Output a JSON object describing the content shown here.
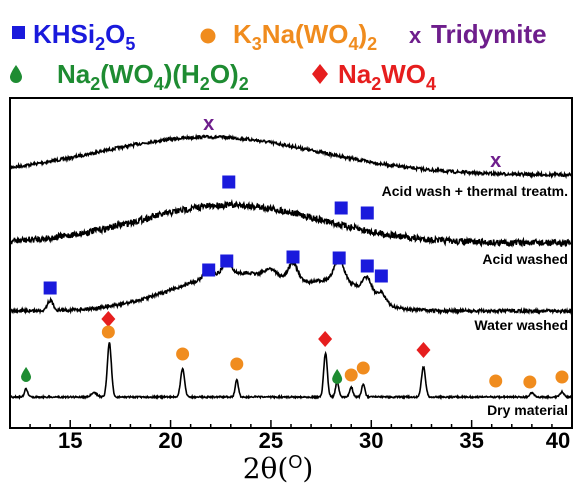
{
  "chart_data": {
    "type": "line",
    "title": "",
    "xlabel": "2θ(°)",
    "ylabel": "",
    "xlim": [
      12,
      40
    ],
    "xticks": [
      15,
      20,
      25,
      30,
      35,
      40
    ],
    "grid": false,
    "legend_position": "top",
    "legend": [
      {
        "key": "khsi2o5",
        "label": "KHSi2O5",
        "marker": "square",
        "color": "#1a1adc"
      },
      {
        "key": "k3na",
        "label": "K3Na(WO4)2",
        "marker": "circle",
        "color": "#f08c1e"
      },
      {
        "key": "tridymite",
        "label": "Tridymite",
        "marker": "x",
        "color": "#6e1e8c"
      },
      {
        "key": "na2wo4h2o",
        "label": "Na2(WO4)(H2O)2",
        "marker": "drop",
        "color": "#1e8c32"
      },
      {
        "key": "na2wo4",
        "label": "Na2WO4",
        "marker": "diamond",
        "color": "#e61e1e"
      }
    ],
    "series": [
      {
        "name": "Acid wash + thermal treatm.",
        "baseline": 0.0,
        "peaks": [
          {
            "x": 21.9,
            "marker": "tridymite"
          },
          {
            "x": 36.2,
            "marker": "tridymite"
          }
        ]
      },
      {
        "name": "Acid washed",
        "baseline": 0.0,
        "peaks": [
          {
            "x": 22.9,
            "marker": "khsi2o5"
          },
          {
            "x": 28.5,
            "marker": "khsi2o5"
          },
          {
            "x": 29.8,
            "marker": "khsi2o5"
          }
        ]
      },
      {
        "name": "Water washed",
        "baseline": 0.0,
        "peaks": [
          {
            "x": 14.0,
            "marker": "khsi2o5"
          },
          {
            "x": 21.9,
            "marker": "khsi2o5"
          },
          {
            "x": 22.8,
            "marker": "khsi2o5"
          },
          {
            "x": 26.1,
            "marker": "khsi2o5"
          },
          {
            "x": 28.4,
            "marker": "khsi2o5"
          },
          {
            "x": 29.8,
            "marker": "khsi2o5"
          },
          {
            "x": 30.5,
            "marker": "khsi2o5"
          }
        ]
      },
      {
        "name": "Dry material",
        "baseline": 0.0,
        "peaks": [
          {
            "x": 12.8,
            "marker": "na2wo4h2o"
          },
          {
            "x": 16.9,
            "marker": "na2wo4"
          },
          {
            "x": 16.9,
            "marker": "k3na"
          },
          {
            "x": 20.6,
            "marker": "k3na"
          },
          {
            "x": 23.3,
            "marker": "k3na"
          },
          {
            "x": 27.7,
            "marker": "na2wo4"
          },
          {
            "x": 28.3,
            "marker": "na2wo4h2o"
          },
          {
            "x": 29.0,
            "marker": "k3na"
          },
          {
            "x": 29.6,
            "marker": "k3na"
          },
          {
            "x": 32.6,
            "marker": "na2wo4"
          },
          {
            "x": 36.2,
            "marker": "k3na"
          },
          {
            "x": 37.9,
            "marker": "k3na"
          },
          {
            "x": 39.5,
            "marker": "k3na"
          }
        ]
      }
    ]
  }
}
